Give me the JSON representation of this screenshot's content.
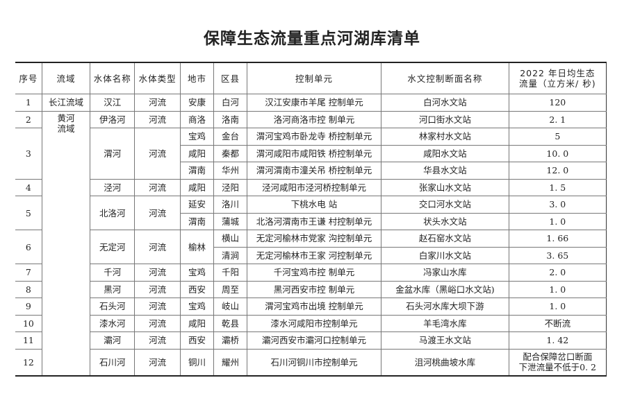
{
  "title": "保障生态流量重点河湖库清单",
  "headers": [
    "序号",
    "流域",
    "水体名称",
    "水体类型",
    "地市",
    "区县",
    "控制单元",
    "水文控制断面名称",
    "2022 年日均生态\n流量（立方米/ 秒)"
  ],
  "groups": [
    {
      "no": "1",
      "basin": "长江流域",
      "name": "汉江",
      "type": "河流",
      "rows": [
        {
          "city": "安康",
          "county": "白河",
          "unit": "汉江安康市羊尾 控制单元",
          "section": "白河水文站",
          "flow": "120"
        }
      ]
    },
    {
      "no": "2",
      "basin": "黄河\n流域",
      "name": "伊洛河",
      "type": "河流",
      "rows": [
        {
          "city": "商洛",
          "county": "洛南",
          "unit": "洛河商洛市控 制单元",
          "section": "河口街水文站",
          "flow": "2. 1"
        }
      ]
    },
    {
      "no": "3",
      "basin": "黄河\n流域",
      "name": "渭河",
      "type": "河流",
      "rows": [
        {
          "city": "宝鸡",
          "county": "金台",
          "unit": "渭河宝鸡市卧龙寺 桥控制单元",
          "section": "林家村水文站",
          "flow": "5"
        },
        {
          "city": "咸阳",
          "county": "秦都",
          "unit": "渭河咸阳市咸阳铁 桥控制单元",
          "section": "咸阳水文站",
          "flow": "10. 0"
        },
        {
          "city": "渭南",
          "county": "华州",
          "unit": "渭河渭南市潼关吊 桥控制单元",
          "section": "华县水文站",
          "flow": "12. 0"
        }
      ]
    },
    {
      "no": "4",
      "basin": "黄河\n流域",
      "name": "泾河",
      "type": "河流",
      "rows": [
        {
          "city": "咸阳",
          "county": "泾阳",
          "unit": "泾河咸阳市泾河桥控制单元",
          "section": "张家山水文站",
          "flow": "1. 5"
        }
      ]
    },
    {
      "no": "5",
      "basin": "黄河\n流域",
      "name": "北洛河",
      "type": "河流",
      "rows": [
        {
          "city": "延安",
          "county": "洛川",
          "unit": "下桃水电 站",
          "section": "交口河水文站",
          "flow": "3. 0"
        },
        {
          "city": "渭南",
          "county": "蒲城",
          "unit": "北洛河渭南市王谦 村控制单元",
          "section": "状头水文站",
          "flow": "1. 0"
        }
      ]
    },
    {
      "no": "6",
      "basin": "黄河\n流域",
      "name": "无定河",
      "type": "河流",
      "rows": [
        {
          "city": "榆林",
          "county": "横山",
          "unit": "无定河榆林市党家 沟控制单元",
          "section": "赵石窑水文站",
          "flow": "1. 66"
        },
        {
          "city": "榆林",
          "county": "清涧",
          "unit": "无定河榆林市王家 河控制单元",
          "section": "白家川水文站",
          "flow": "3. 65"
        }
      ]
    },
    {
      "no": "7",
      "basin": "黄河\n流域",
      "name": "千河",
      "type": "河流",
      "rows": [
        {
          "city": "宝鸡",
          "county": "千阳",
          "unit": "千河宝鸡市控 制单元",
          "section": "冯家山水库",
          "flow": "2. 0"
        }
      ]
    },
    {
      "no": "8",
      "basin": "黄河\n流域",
      "name": "黑河",
      "type": "河流",
      "rows": [
        {
          "city": "西安",
          "county": "周至",
          "unit": "黑河西安市控 制单元",
          "section": "金盆水库（黑峪口水文站)",
          "flow": "1. 0"
        }
      ]
    },
    {
      "no": "9",
      "basin": "黄河\n流域",
      "name": "石头河",
      "type": "河流",
      "rows": [
        {
          "city": "宝鸡",
          "county": "岐山",
          "unit": "渭河宝鸡市出境 控制单元",
          "section": "石头河水库大坝下游",
          "flow": "1. 0"
        }
      ]
    },
    {
      "no": "10",
      "basin": "黄河\n流域",
      "name": "漆水河",
      "type": "河流",
      "rows": [
        {
          "city": "咸阳",
          "county": "乾县",
          "unit": "漆水河咸阳市控制单元",
          "section": "羊毛湾水库",
          "flow": "不断流"
        }
      ]
    },
    {
      "no": "11",
      "basin": "黄河\n流域",
      "name": "灞河",
      "type": "河流",
      "rows": [
        {
          "city": "西安",
          "county": "灞桥",
          "unit": "灞河西安市灞河口控制单元",
          "section": "马渡王水文站",
          "flow": "1. 42"
        }
      ]
    },
    {
      "no": "12",
      "basin": "黄河\n流域",
      "name": "石川河",
      "type": "河流",
      "rows": [
        {
          "city": "铜川",
          "county": "耀州",
          "unit": "石川河铜川市控制单元",
          "section": "沮河桃曲坡水库",
          "flow": "配合保障岔口断面\n下泄流量不低于0. 2"
        }
      ]
    }
  ]
}
